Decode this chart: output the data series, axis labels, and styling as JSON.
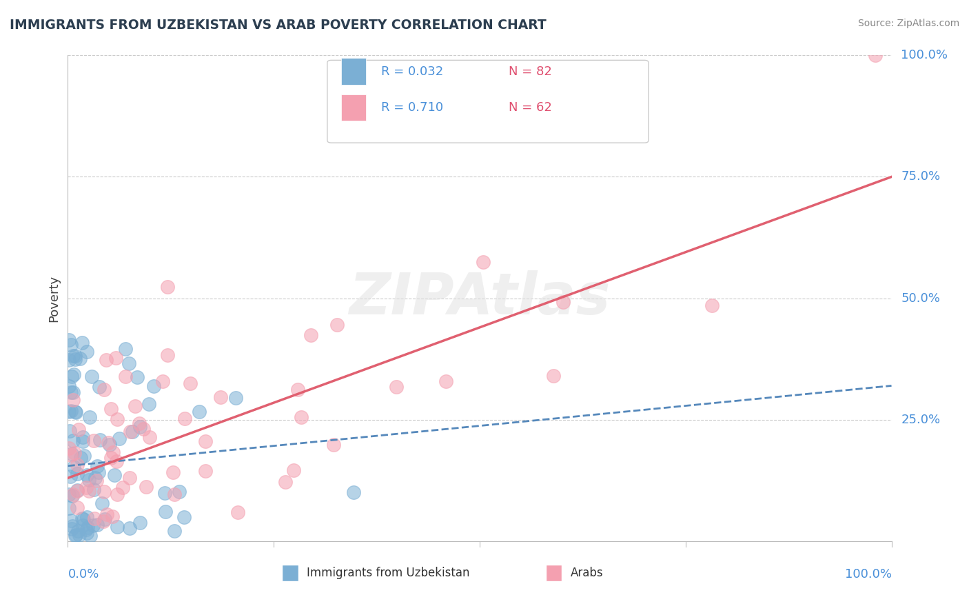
{
  "title": "IMMIGRANTS FROM UZBEKISTAN VS ARAB POVERTY CORRELATION CHART",
  "source_text": "Source: ZipAtlas.com",
  "ylabel": "Poverty",
  "ytick_labels": [
    "0.0%",
    "25.0%",
    "50.0%",
    "75.0%",
    "100.0%"
  ],
  "ytick_values": [
    0.0,
    0.25,
    0.5,
    0.75,
    1.0
  ],
  "xtick_labels": [
    "0.0%",
    "100.0%"
  ],
  "xlim": [
    0.0,
    1.0
  ],
  "ylim": [
    0.0,
    1.0
  ],
  "series1_name": "Immigrants from Uzbekistan",
  "series1_color": "#7bafd4",
  "series1_R": 0.032,
  "series1_N": 82,
  "series1_trend_x": [
    0.0,
    1.0
  ],
  "series1_trend_y": [
    0.155,
    0.32
  ],
  "series2_name": "Arabs",
  "series2_color": "#f4a0b0",
  "series2_R": 0.71,
  "series2_N": 62,
  "series2_trend_x": [
    0.0,
    1.0
  ],
  "series2_trend_y": [
    0.13,
    0.75
  ],
  "watermark": "ZIPAtlas",
  "title_color": "#2c3e50",
  "axis_text_color": "#4a90d9",
  "grid_color": "#cccccc",
  "spine_color": "#bbbbbb",
  "background_color": "#ffffff",
  "legend_R_color": "#4a90d9",
  "legend_N_color": "#e05070",
  "trend1_color": "#5588bb",
  "trend2_color": "#e06070"
}
